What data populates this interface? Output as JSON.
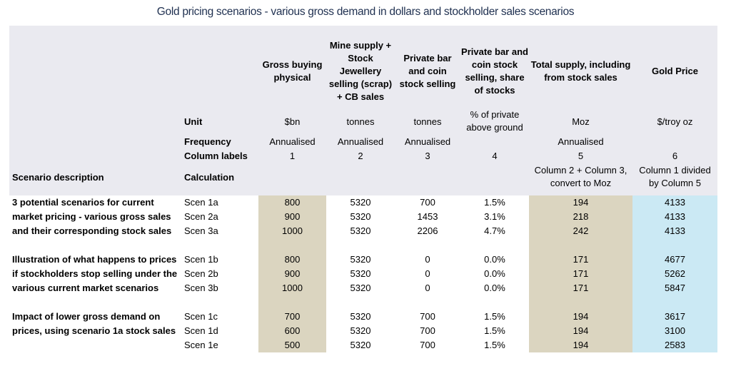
{
  "title": "Gold pricing scenarios - various gross demand in dollars and stockholder sales scenarios",
  "colors": {
    "header_bg": "#eaeaf0",
    "tan_column": "#dbd5c0",
    "blue_column": "#cbe9f4",
    "title_text": "#1f3050"
  },
  "table": {
    "column_headers": [
      "Gross buying\nphysical",
      "Mine supply +\nStock\nJewellery\nselling (scrap)\n+ CB sales",
      "Private bar\nand coin\nstock selling",
      "Private bar and\ncoin stock\nselling, share\nof stocks",
      "Total supply, including\nfrom stock sales",
      "Gold Price"
    ],
    "unit_row": {
      "label": "Unit",
      "values": [
        "$bn",
        "tonnes",
        "tonnes",
        "% of private\nabove ground",
        "Moz",
        "$/troy oz"
      ]
    },
    "frequency_row": {
      "label": "Frequency",
      "values": [
        "Annualised",
        "Annualised",
        "Annualised",
        "",
        "Annualised",
        ""
      ]
    },
    "column_labels_row": {
      "label": "Column labels",
      "values": [
        "1",
        "2",
        "3",
        "4",
        "5",
        "6"
      ]
    },
    "calculation_row": {
      "scenario_header": "Scenario description",
      "label": "Calculation",
      "values": [
        "",
        "",
        "",
        "",
        "Column 2 + Column 3,\nconvert to Moz",
        "Column 1 divided\nby Column 5"
      ]
    },
    "rows": [
      {
        "description": "3 potential scenarios for current",
        "scen": "Scen 1a",
        "values": [
          "800",
          "5320",
          "700",
          "1.5%",
          "194",
          "4133"
        ]
      },
      {
        "description": "market pricing - various gross sales",
        "scen": "Scen 2a",
        "values": [
          "900",
          "5320",
          "1453",
          "3.1%",
          "218",
          "4133"
        ]
      },
      {
        "description": "and their corresponding stock sales",
        "scen": "Scen 3a",
        "values": [
          "1000",
          "5320",
          "2206",
          "4.7%",
          "242",
          "4133"
        ]
      },
      {
        "description": "",
        "scen": "",
        "values": [
          "",
          "",
          "",
          "",
          "",
          ""
        ]
      },
      {
        "description": "Illustration of what happens to prices",
        "scen": "Scen 1b",
        "values": [
          "800",
          "5320",
          "0",
          "0.0%",
          "171",
          "4677"
        ]
      },
      {
        "description": "if stockholders stop selling under the",
        "scen": "Scen 2b",
        "values": [
          "900",
          "5320",
          "0",
          "0.0%",
          "171",
          "5262"
        ]
      },
      {
        "description": "various current market scenarios",
        "scen": "Scen 3b",
        "values": [
          "1000",
          "5320",
          "0",
          "0.0%",
          "171",
          "5847"
        ]
      },
      {
        "description": "",
        "scen": "",
        "values": [
          "",
          "",
          "",
          "",
          "",
          ""
        ]
      },
      {
        "description": "Impact of lower gross demand on",
        "scen": "Scen 1c",
        "values": [
          "700",
          "5320",
          "700",
          "1.5%",
          "194",
          "3617"
        ]
      },
      {
        "description": "prices, using scenario 1a stock sales",
        "scen": "Scen 1d",
        "values": [
          "600",
          "5320",
          "700",
          "1.5%",
          "194",
          "3100"
        ]
      },
      {
        "description": "",
        "scen": "Scen 1e",
        "values": [
          "500",
          "5320",
          "700",
          "1.5%",
          "194",
          "2583"
        ]
      }
    ]
  }
}
